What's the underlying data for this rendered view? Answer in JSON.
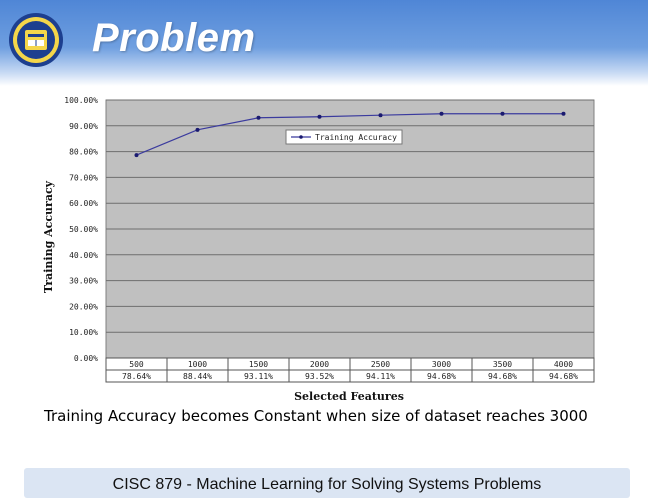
{
  "slide": {
    "title": "Problem",
    "caption": "Training Accuracy becomes Constant when size of dataset reaches 3000",
    "footer": "CISC 879 - Machine Learning for Solving Systems Problems"
  },
  "colors": {
    "header": "#5b8edb",
    "plot_background": "#c0c0c0",
    "series_line": "#3b3b9e",
    "footer": "#dbe5f3"
  },
  "chart_data": {
    "type": "line",
    "title": "",
    "xlabel": "Selected Features",
    "ylabel": "Training Accuracy",
    "ylim": [
      0,
      100
    ],
    "yticks": [
      "0.00%",
      "10.00%",
      "20.00%",
      "30.00%",
      "40.00%",
      "50.00%",
      "60.00%",
      "70.00%",
      "80.00%",
      "90.00%",
      "100.00%"
    ],
    "grid": true,
    "legend": {
      "position": "top-center",
      "entries": [
        "Training Accuracy"
      ]
    },
    "categories": [
      "500",
      "1000",
      "1500",
      "2000",
      "2500",
      "3000",
      "3500",
      "4000"
    ],
    "series": [
      {
        "name": "Training Accuracy",
        "values": [
          78.64,
          88.44,
          93.11,
          93.52,
          94.11,
          94.68,
          94.68,
          94.68
        ],
        "labels": [
          "78.64%",
          "88.44%",
          "93.11%",
          "93.52%",
          "94.11%",
          "94.68%",
          "94.68%",
          "94.68%"
        ]
      }
    ]
  }
}
